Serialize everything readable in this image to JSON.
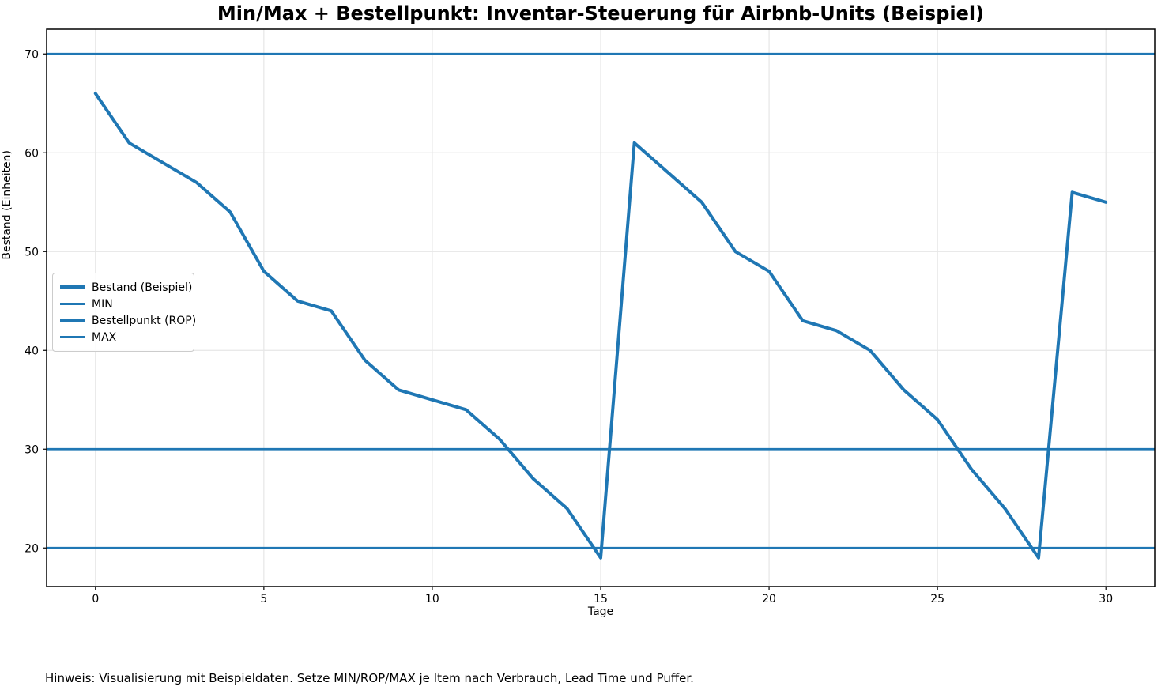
{
  "chart_data": {
    "type": "line",
    "title": "Min/Max + Bestellpunkt: Inventar-Steuerung für Airbnb-Units (Beispiel)",
    "xlabel": "Tage",
    "ylabel": "Bestand (Einheiten)",
    "x": [
      0,
      1,
      2,
      3,
      4,
      5,
      6,
      7,
      8,
      9,
      10,
      11,
      12,
      13,
      14,
      15,
      16,
      17,
      18,
      19,
      20,
      21,
      22,
      23,
      24,
      25,
      26,
      27,
      28,
      29,
      30
    ],
    "series": [
      {
        "name": "Bestand (Beispiel)",
        "kind": "line",
        "values": [
          66,
          61,
          59,
          57,
          54,
          48,
          45,
          44,
          39,
          36,
          35,
          34,
          31,
          27,
          24,
          19,
          61,
          58,
          55,
          50,
          48,
          43,
          42,
          40,
          36,
          33,
          28,
          24,
          19,
          56,
          55
        ]
      },
      {
        "name": "MIN",
        "kind": "hline",
        "value": 20
      },
      {
        "name": "Bestellpunkt (ROP)",
        "kind": "hline",
        "value": 30
      },
      {
        "name": "MAX",
        "kind": "hline",
        "value": 70
      }
    ],
    "xlim": [
      -1.45,
      31.45
    ],
    "ylim": [
      16.1,
      72.5
    ],
    "xticks": [
      0,
      5,
      10,
      15,
      20,
      25,
      30
    ],
    "yticks": [
      20,
      30,
      40,
      50,
      60,
      70
    ],
    "grid": true,
    "legend_position": "center-left",
    "line_color": "#1f77b4",
    "grid_color": "#e6e6e6",
    "spine_color": "#000000",
    "tick_label_color": "#000000"
  },
  "footer": {
    "note": "Hinweis: Visualisierung mit Beispieldaten. Setze MIN/ROP/MAX je Item nach Verbrauch, Lead Time und Puffer."
  }
}
